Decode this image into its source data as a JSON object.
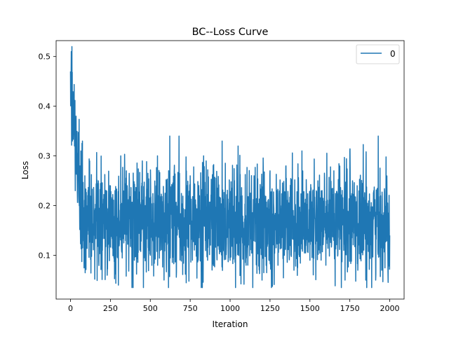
{
  "chart_data": {
    "type": "line",
    "title": "BC--Loss Curve",
    "xlabel": "Iteration",
    "ylabel": "Loss",
    "xlim": [
      -90,
      2090
    ],
    "ylim": [
      0.012,
      0.532
    ],
    "x_ticks": [
      0,
      250,
      500,
      750,
      1000,
      1250,
      1500,
      1750,
      2000
    ],
    "x_tick_labels": [
      "0",
      "250",
      "500",
      "750",
      "1000",
      "1250",
      "1500",
      "1750",
      "2000"
    ],
    "y_ticks": [
      0.1,
      0.2,
      0.3,
      0.4,
      0.5
    ],
    "y_tick_labels": [
      "0.1",
      "0.2",
      "0.3",
      "0.4",
      "0.5"
    ],
    "grid": false,
    "legend_position": "top-right",
    "series": [
      {
        "name": "0",
        "color": "#1f77b4",
        "x_start": 0,
        "x_end": 2000,
        "points": 2001,
        "values_sample": [
          [
            0,
            0.47
          ],
          [
            2,
            0.46
          ],
          [
            5,
            0.51
          ],
          [
            8,
            0.42
          ],
          [
            10,
            0.39
          ],
          [
            12,
            0.33
          ],
          [
            15,
            0.41
          ],
          [
            18,
            0.35
          ],
          [
            20,
            0.37
          ],
          [
            25,
            0.32
          ],
          [
            30,
            0.23
          ],
          [
            35,
            0.38
          ],
          [
            40,
            0.3
          ],
          [
            45,
            0.22
          ],
          [
            50,
            0.34
          ],
          [
            55,
            0.2
          ],
          [
            60,
            0.28
          ],
          [
            65,
            0.31
          ],
          [
            70,
            0.17
          ],
          [
            75,
            0.33
          ],
          [
            80,
            0.19
          ],
          [
            90,
            0.26
          ],
          [
            100,
            0.15
          ],
          [
            120,
            0.29
          ],
          [
            150,
            0.14
          ],
          [
            175,
            0.25
          ],
          [
            200,
            0.11
          ],
          [
            230,
            0.06
          ],
          [
            250,
            0.24
          ],
          [
            275,
            0.17
          ],
          [
            300,
            0.04
          ],
          [
            350,
            0.27
          ],
          [
            400,
            0.09
          ],
          [
            450,
            0.29
          ],
          [
            500,
            0.1
          ],
          [
            550,
            0.22
          ],
          [
            600,
            0.09
          ],
          [
            650,
            0.27
          ],
          [
            680,
            0.34
          ],
          [
            700,
            0.1
          ],
          [
            750,
            0.26
          ],
          [
            800,
            0.09
          ],
          [
            850,
            0.29
          ],
          [
            900,
            0.08
          ],
          [
            950,
            0.33
          ],
          [
            1000,
            0.09
          ],
          [
            1050,
            0.32
          ],
          [
            1100,
            0.08
          ],
          [
            1150,
            0.26
          ],
          [
            1200,
            0.05
          ],
          [
            1250,
            0.27
          ],
          [
            1300,
            0.08
          ],
          [
            1350,
            0.28
          ],
          [
            1400,
            0.07
          ],
          [
            1450,
            0.31
          ],
          [
            1500,
            0.09
          ],
          [
            1550,
            0.25
          ],
          [
            1600,
            0.08
          ],
          [
            1650,
            0.27
          ],
          [
            1700,
            0.1
          ],
          [
            1720,
            0.05
          ],
          [
            1750,
            0.31
          ],
          [
            1800,
            0.07
          ],
          [
            1850,
            0.05
          ],
          [
            1900,
            0.23
          ],
          [
            1950,
            0.07
          ],
          [
            2000,
            0.14
          ]
        ],
        "noise_model": {
          "early_phase_end": 60,
          "decay_start": 0.47,
          "decay_end": 0.22,
          "steady_mean": 0.168,
          "steady_std": 0.052,
          "steady_min": 0.035,
          "steady_max": 0.34,
          "seed": 1337
        }
      }
    ]
  }
}
